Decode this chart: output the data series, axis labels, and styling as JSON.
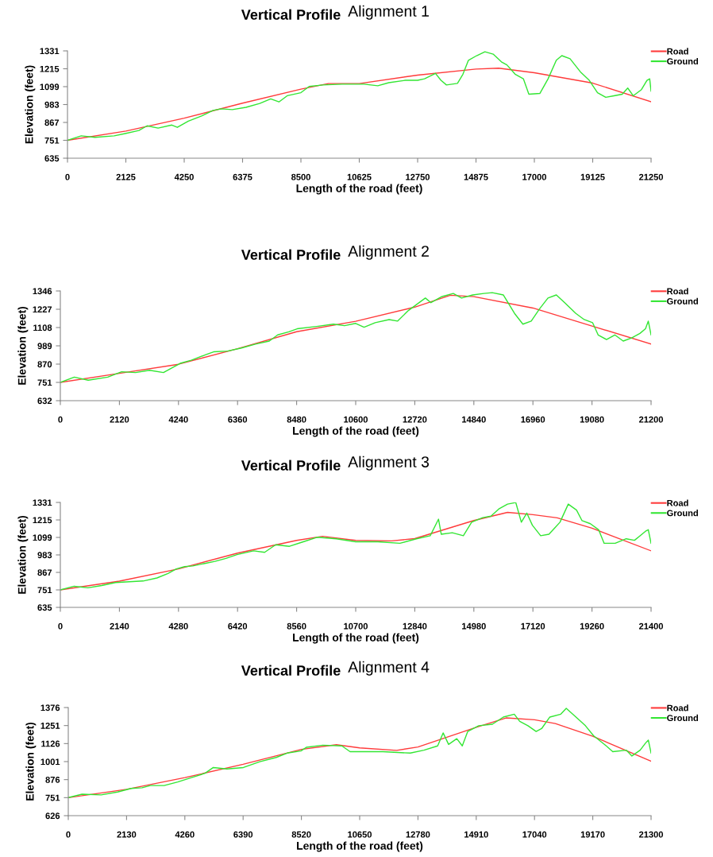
{
  "chart_data": [
    {
      "type": "line",
      "title": "Vertical Profile",
      "subtitle": "Alignment 1",
      "xlabel": "Length of the road (feet)",
      "ylabel": "Elevation (feet)",
      "legend": "top right",
      "grid": false,
      "xlim": [
        0,
        21250
      ],
      "xticks": [
        0,
        2125,
        4250,
        6375,
        8500,
        10625,
        12750,
        14875,
        17000,
        19125,
        21250
      ],
      "ylim": [
        635,
        1331
      ],
      "yticks": [
        635,
        751,
        867,
        983,
        1099,
        1215,
        1331
      ],
      "series": [
        {
          "name": "Road",
          "color": "#ff3b3b",
          "x": [
            0,
            2125,
            4250,
            6375,
            8500,
            9500,
            10625,
            12750,
            14875,
            15700,
            17000,
            19125,
            21250
          ],
          "values": [
            751,
            811,
            895,
            992,
            1083,
            1119,
            1119,
            1174,
            1213,
            1219,
            1189,
            1122,
            1001
          ]
        },
        {
          "name": "Ground",
          "color": "#33e633",
          "x": [
            0,
            500,
            1000,
            1700,
            2100,
            2600,
            2900,
            3300,
            3800,
            4000,
            4400,
            4900,
            5300,
            5600,
            6000,
            6500,
            7000,
            7400,
            7700,
            8000,
            8500,
            8800,
            9300,
            10000,
            10800,
            11300,
            11700,
            12300,
            12750,
            13000,
            13400,
            13600,
            13800,
            14200,
            14400,
            14600,
            14900,
            15200,
            15500,
            15800,
            16000,
            16300,
            16600,
            16800,
            17200,
            17500,
            17800,
            18000,
            18300,
            18700,
            19000,
            19300,
            19600,
            19900,
            20200,
            20400,
            20600,
            20900,
            21100,
            21200,
            21250
          ],
          "values": [
            751,
            780,
            770,
            780,
            795,
            815,
            845,
            830,
            850,
            835,
            875,
            910,
            945,
            955,
            950,
            965,
            990,
            1020,
            1000,
            1040,
            1060,
            1100,
            1110,
            1115,
            1115,
            1105,
            1125,
            1140,
            1140,
            1150,
            1185,
            1140,
            1110,
            1120,
            1180,
            1270,
            1300,
            1325,
            1310,
            1260,
            1240,
            1180,
            1150,
            1050,
            1055,
            1150,
            1270,
            1300,
            1280,
            1190,
            1140,
            1060,
            1030,
            1040,
            1050,
            1090,
            1040,
            1080,
            1140,
            1150,
            1070
          ]
        }
      ]
    },
    {
      "type": "line",
      "title": "Vertical Profile",
      "subtitle": "Alignment 2",
      "xlabel": "Length of the road (feet)",
      "ylabel": "Elevation (feet)",
      "legend": "top right",
      "grid": false,
      "xlim": [
        0,
        21200
      ],
      "xticks": [
        0,
        2120,
        4240,
        6360,
        8480,
        10600,
        12720,
        14840,
        16960,
        19080,
        21200
      ],
      "ylim": [
        632,
        1346
      ],
      "yticks": [
        632,
        751,
        870,
        989,
        1108,
        1227,
        1346
      ],
      "series": [
        {
          "name": "Road",
          "color": "#ff3b3b",
          "x": [
            0,
            2120,
            4240,
            6360,
            8480,
            10600,
            12720,
            14000,
            14840,
            16960,
            19080,
            21200
          ],
          "values": [
            751,
            810,
            869,
            970,
            1081,
            1149,
            1241,
            1318,
            1309,
            1235,
            1118,
            1001
          ]
        },
        {
          "name": "Ground",
          "color": "#33e633",
          "x": [
            0,
            500,
            1000,
            1700,
            2200,
            2700,
            3200,
            3700,
            4300,
            4700,
            5200,
            5500,
            6000,
            6500,
            7000,
            7500,
            7800,
            8200,
            8500,
            9200,
            9800,
            10200,
            10600,
            10900,
            11300,
            11800,
            12100,
            12500,
            12800,
            13100,
            13300,
            13700,
            14100,
            14400,
            14800,
            15200,
            15500,
            15900,
            16300,
            16600,
            16900,
            17200,
            17500,
            17800,
            18100,
            18500,
            18800,
            19100,
            19300,
            19600,
            19900,
            20200,
            20500,
            20800,
            21000,
            21100,
            21200
          ],
          "values": [
            751,
            785,
            765,
            785,
            820,
            815,
            830,
            815,
            875,
            895,
            930,
            950,
            955,
            975,
            1000,
            1020,
            1060,
            1080,
            1100,
            1115,
            1130,
            1120,
            1135,
            1110,
            1140,
            1160,
            1150,
            1220,
            1260,
            1300,
            1270,
            1310,
            1330,
            1300,
            1320,
            1330,
            1335,
            1320,
            1200,
            1130,
            1150,
            1230,
            1300,
            1320,
            1270,
            1200,
            1160,
            1140,
            1060,
            1030,
            1060,
            1020,
            1040,
            1070,
            1100,
            1150,
            1060
          ]
        }
      ]
    },
    {
      "type": "line",
      "title": "Vertical Profile",
      "subtitle": "Alignment 3",
      "xlabel": "Length of the road (feet)",
      "ylabel": "Elevation (feet)",
      "legend": "top right",
      "grid": false,
      "xlim": [
        0,
        21400
      ],
      "xticks": [
        0,
        2140,
        4280,
        6420,
        8560,
        10700,
        12840,
        14980,
        17120,
        19260,
        21400
      ],
      "ylim": [
        635,
        1331
      ],
      "yticks": [
        635,
        751,
        867,
        983,
        1099,
        1215,
        1331
      ],
      "series": [
        {
          "name": "Road",
          "color": "#ff3b3b",
          "x": [
            0,
            2140,
            4280,
            6420,
            8560,
            9500,
            10700,
            12000,
            12840,
            14980,
            16200,
            17120,
            18000,
            19260,
            21400
          ],
          "values": [
            751,
            809,
            890,
            995,
            1079,
            1106,
            1079,
            1076,
            1091,
            1211,
            1265,
            1250,
            1229,
            1160,
            1010
          ]
        },
        {
          "name": "Ground",
          "color": "#33e633",
          "x": [
            0,
            500,
            1000,
            1500,
            2000,
            2500,
            3000,
            3500,
            3900,
            4200,
            4500,
            4800,
            5200,
            5600,
            6000,
            6400,
            7000,
            7400,
            7800,
            8300,
            8800,
            9300,
            10000,
            10700,
            11500,
            12300,
            12900,
            13400,
            13700,
            13800,
            14200,
            14600,
            14900,
            15300,
            15600,
            15900,
            16200,
            16500,
            16700,
            16900,
            17100,
            17400,
            17700,
            17900,
            18100,
            18400,
            18700,
            18900,
            19200,
            19500,
            19700,
            20100,
            20500,
            20800,
            21000,
            21200,
            21300,
            21400
          ],
          "values": [
            751,
            775,
            765,
            780,
            800,
            805,
            810,
            830,
            860,
            890,
            905,
            910,
            925,
            940,
            960,
            985,
            1010,
            1000,
            1050,
            1040,
            1070,
            1100,
            1090,
            1070,
            1070,
            1060,
            1090,
            1110,
            1220,
            1120,
            1130,
            1110,
            1200,
            1230,
            1240,
            1290,
            1320,
            1330,
            1200,
            1260,
            1180,
            1110,
            1120,
            1160,
            1200,
            1320,
            1280,
            1210,
            1190,
            1150,
            1060,
            1060,
            1090,
            1080,
            1110,
            1140,
            1150,
            1060
          ]
        }
      ]
    },
    {
      "type": "line",
      "title": "Vertical Profile",
      "subtitle": "Alignment 4",
      "xlabel": "Length of the road (feet)",
      "ylabel": "Elevation (feet)",
      "legend": "top right",
      "grid": false,
      "xlim": [
        0,
        21300
      ],
      "xticks": [
        0,
        2130,
        4260,
        6390,
        8520,
        10650,
        12780,
        14910,
        17040,
        19170,
        21300
      ],
      "ylim": [
        626,
        1376
      ],
      "yticks": [
        626,
        751,
        876,
        1001,
        1126,
        1251,
        1376
      ],
      "series": [
        {
          "name": "Road",
          "color": "#ff3b3b",
          "x": [
            0,
            2130,
            4260,
            6390,
            8520,
            9800,
            10650,
            12000,
            12780,
            14910,
            16000,
            17040,
            17800,
            19170,
            21300
          ],
          "values": [
            751,
            809,
            890,
            982,
            1086,
            1118,
            1096,
            1079,
            1102,
            1239,
            1304,
            1291,
            1265,
            1177,
            1004
          ]
        },
        {
          "name": "Ground",
          "color": "#33e633",
          "x": [
            0,
            500,
            1200,
            1800,
            2300,
            2700,
            3000,
            3500,
            4000,
            4500,
            5000,
            5300,
            5800,
            6400,
            7000,
            7600,
            8000,
            8500,
            8700,
            9300,
            10000,
            10300,
            11500,
            12500,
            13000,
            13500,
            13700,
            13900,
            14200,
            14400,
            14600,
            15000,
            15500,
            15900,
            16300,
            16500,
            16800,
            17100,
            17300,
            17600,
            18000,
            18200,
            18500,
            18900,
            19200,
            19600,
            19900,
            20400,
            20600,
            20900,
            21100,
            21200,
            21300
          ],
          "values": [
            751,
            775,
            770,
            790,
            815,
            820,
            835,
            835,
            860,
            890,
            920,
            960,
            950,
            960,
            1000,
            1030,
            1060,
            1075,
            1100,
            1115,
            1110,
            1070,
            1070,
            1060,
            1080,
            1110,
            1200,
            1120,
            1160,
            1110,
            1210,
            1250,
            1260,
            1310,
            1330,
            1280,
            1250,
            1210,
            1230,
            1310,
            1330,
            1370,
            1320,
            1250,
            1180,
            1120,
            1070,
            1080,
            1040,
            1080,
            1130,
            1150,
            1060
          ]
        }
      ]
    }
  ]
}
